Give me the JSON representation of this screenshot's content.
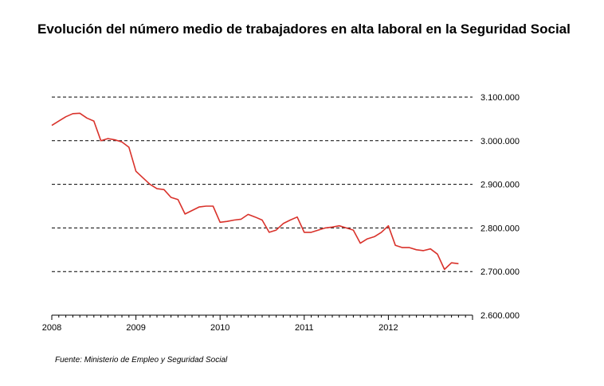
{
  "chart_data": {
    "type": "line",
    "title": "Evolución del número medio de trabajadores en alta laboral en la Seguridad Social",
    "source": "Fuente: Ministerio de Empleo y Seguridad Social",
    "xlabel": "",
    "ylabel": "",
    "x_ticks": [
      "2008",
      "2009",
      "2010",
      "2011",
      "2012"
    ],
    "y_ticks": [
      {
        "value": 2600000,
        "label": "2.600.000"
      },
      {
        "value": 2700000,
        "label": "2.700.000"
      },
      {
        "value": 2800000,
        "label": "2.800.000"
      },
      {
        "value": 2900000,
        "label": "2.900.000"
      },
      {
        "value": 3000000,
        "label": "3.000.000"
      },
      {
        "value": 3100000,
        "label": "3.100.000"
      }
    ],
    "ylim": [
      2600000,
      3100000
    ],
    "xlim": [
      "2008-01",
      "2013-01"
    ],
    "grid": "dashed horizontal",
    "series": [
      {
        "color": "#d9322b",
        "x": [
          "2008-01",
          "2008-02",
          "2008-03",
          "2008-04",
          "2008-05",
          "2008-06",
          "2008-07",
          "2008-08",
          "2008-09",
          "2008-10",
          "2008-11",
          "2008-12",
          "2009-01",
          "2009-02",
          "2009-03",
          "2009-04",
          "2009-05",
          "2009-06",
          "2009-07",
          "2009-08",
          "2009-09",
          "2009-10",
          "2009-11",
          "2009-12",
          "2010-01",
          "2010-02",
          "2010-03",
          "2010-04",
          "2010-05",
          "2010-06",
          "2010-07",
          "2010-08",
          "2010-09",
          "2010-10",
          "2010-11",
          "2010-12",
          "2011-01",
          "2011-02",
          "2011-03",
          "2011-04",
          "2011-05",
          "2011-06",
          "2011-07",
          "2011-08",
          "2011-09",
          "2011-10",
          "2011-11",
          "2011-12",
          "2012-01",
          "2012-02",
          "2012-03",
          "2012-04",
          "2012-05",
          "2012-06",
          "2012-07",
          "2012-08",
          "2012-09",
          "2012-10",
          "2012-11"
        ],
        "values": [
          3035000,
          3045000,
          3055000,
          3062000,
          3063000,
          3052000,
          3045000,
          3000000,
          3005000,
          3002000,
          2997000,
          2985000,
          2930000,
          2915000,
          2900000,
          2890000,
          2888000,
          2870000,
          2865000,
          2832000,
          2840000,
          2848000,
          2850000,
          2850000,
          2813000,
          2815000,
          2818000,
          2820000,
          2831000,
          2825000,
          2818000,
          2790000,
          2795000,
          2810000,
          2818000,
          2825000,
          2790000,
          2790000,
          2795000,
          2800000,
          2802000,
          2805000,
          2800000,
          2795000,
          2765000,
          2775000,
          2780000,
          2790000,
          2805000,
          2760000,
          2755000,
          2755000,
          2750000,
          2748000,
          2752000,
          2740000,
          2705000,
          2720000,
          2718000
        ]
      }
    ]
  }
}
